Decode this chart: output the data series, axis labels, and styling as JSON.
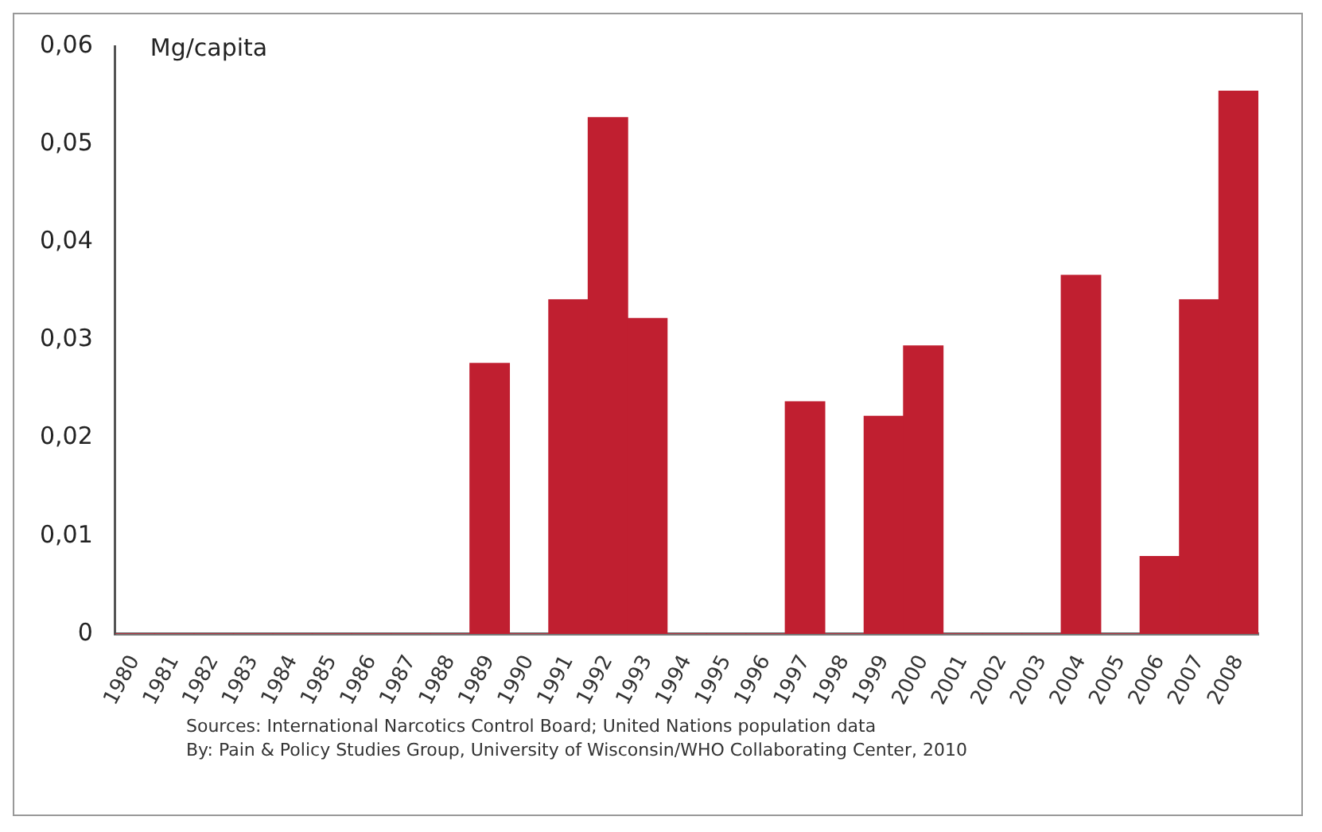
{
  "chart_data": {
    "type": "bar",
    "ylabel": "Mg/capita",
    "categories": [
      "1980",
      "1981",
      "1982",
      "1983",
      "1984",
      "1985",
      "1986",
      "1987",
      "1988",
      "1989",
      "1990",
      "1991",
      "1992",
      "1993",
      "1994",
      "1995",
      "1996",
      "1997",
      "1998",
      "1999",
      "2000",
      "2001",
      "2002",
      "2003",
      "2004",
      "2005",
      "2006",
      "2007",
      "2008"
    ],
    "values": [
      0,
      0,
      0,
      0,
      0,
      0,
      0,
      0,
      0,
      0.0276,
      0,
      0.0341,
      0.0527,
      0.0322,
      0,
      0,
      0,
      0.0237,
      0,
      0.0222,
      0.0294,
      0,
      0,
      0,
      0.0366,
      0,
      0.0079,
      0.0341,
      0.0554
    ],
    "color": "#c01f30",
    "ylim": [
      0,
      0.06
    ],
    "yticks": [
      0,
      {
        "value": 0.01,
        "label": "0,01"
      },
      {
        "value": 0.02,
        "label": "0,02"
      },
      {
        "value": 0.03,
        "label": "0,03"
      },
      {
        "value": 0.04,
        "label": "0,04"
      },
      {
        "value": 0.05,
        "label": "0,05"
      },
      {
        "value": 0.06,
        "label": "0,06"
      }
    ],
    "grid": false,
    "legend": false,
    "annotations": [
      "Sources: International Narcotics Control Board; United Nations population data",
      "By: Pain & Policy Studies Group, University of Wisconsin/WHO Collaborating Center, 2010"
    ]
  }
}
